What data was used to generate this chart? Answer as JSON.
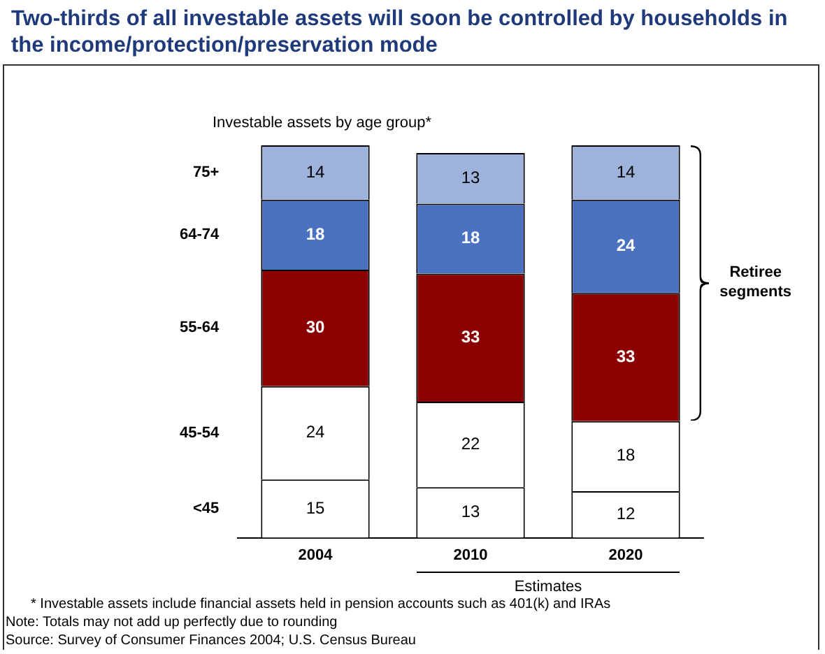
{
  "chart_data": {
    "type": "bar",
    "title": "Two-thirds of all investable assets will soon be controlled by households in the income/protection/preservation mode",
    "subtitle": "Investable assets by age group*",
    "categories": [
      "2004",
      "2010",
      "2020"
    ],
    "stacked": true,
    "data_labels": true,
    "legend": false,
    "series": [
      {
        "name": "<45",
        "color": "#ffffff",
        "values": [
          15,
          13,
          12
        ]
      },
      {
        "name": "45-54",
        "color": "#ffffff",
        "values": [
          24,
          22,
          18
        ]
      },
      {
        "name": "55-64",
        "color": "#8b0000",
        "values": [
          30,
          33,
          33
        ]
      },
      {
        "name": "64-74",
        "color": "#4a72c0",
        "values": [
          18,
          18,
          24
        ]
      },
      {
        "name": "75+",
        "color": "#9db3dc",
        "values": [
          14,
          13,
          14
        ]
      }
    ],
    "annotations": [
      "Retiree segments",
      "Estimates",
      "* Investable assets include financial assets held in pension accounts such as 401(k) and IRAs",
      "Note: Totals may not add up perfectly due to rounding",
      "Source: Survey of Consumer Finances 2004; U.S. Census Bureau"
    ]
  }
}
